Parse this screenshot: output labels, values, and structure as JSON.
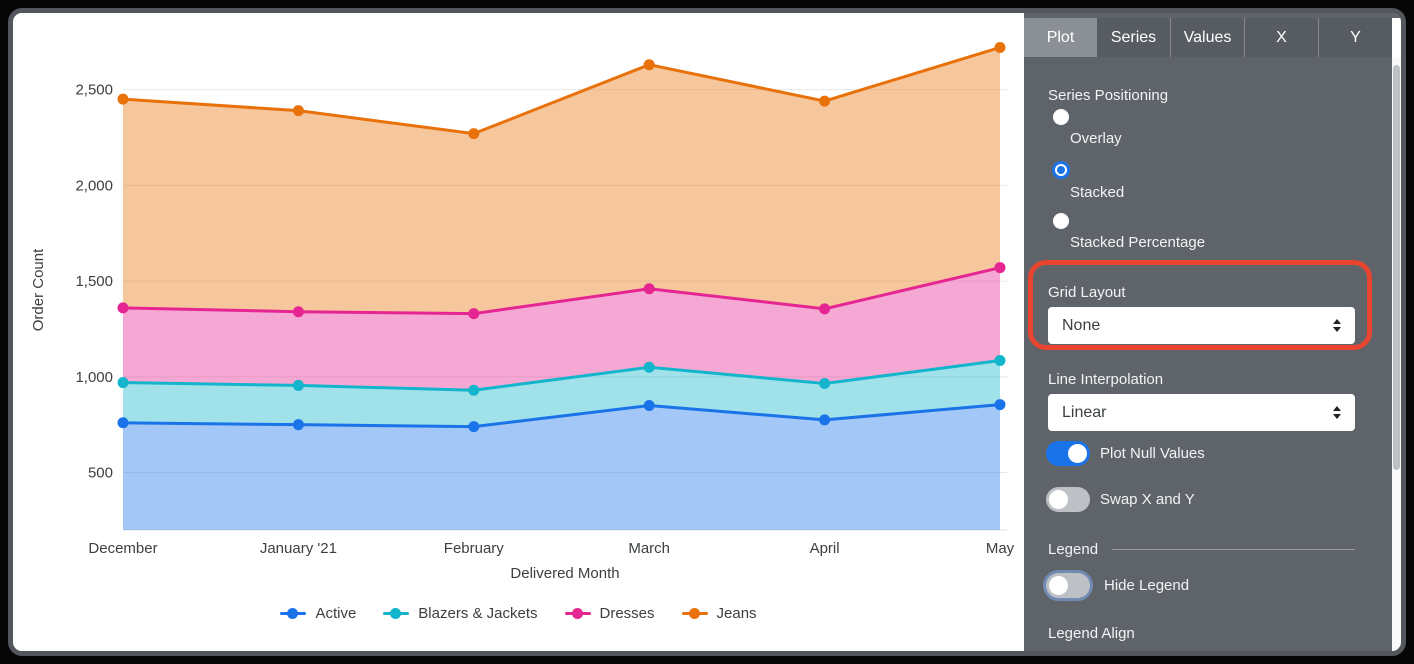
{
  "panel": {
    "tabs": [
      {
        "label": "Plot",
        "active": true
      },
      {
        "label": "Series",
        "active": false
      },
      {
        "label": "Values",
        "active": false
      },
      {
        "label": "X",
        "active": false
      },
      {
        "label": "Y",
        "active": false
      }
    ],
    "series_positioning": {
      "label": "Series Positioning",
      "options": [
        {
          "label": "Overlay",
          "selected": false
        },
        {
          "label": "Stacked",
          "selected": true
        },
        {
          "label": "Stacked Percentage",
          "selected": false
        }
      ]
    },
    "grid_layout": {
      "label": "Grid Layout",
      "value": "None"
    },
    "line_interpolation": {
      "label": "Line Interpolation",
      "value": "Linear"
    },
    "toggles": [
      {
        "label": "Plot Null Values",
        "on": true
      },
      {
        "label": "Swap X and Y",
        "on": false
      },
      {
        "label": "Hide Legend",
        "on": false,
        "focus_ring": true
      }
    ],
    "legend_section": {
      "header": "Legend",
      "legend_align_label": "Legend Align"
    },
    "colors": {
      "accent_blue": "#1a73e8",
      "panel_bg": "#5f646a",
      "active_tab": "#8a9096"
    }
  },
  "annotation": {
    "type": "highlight-box",
    "color": "#e8442f",
    "target": "Grid Layout"
  },
  "chart_data": {
    "type": "area",
    "stacked": true,
    "title": "",
    "xlabel": "Delivered Month",
    "ylabel": "Order Count",
    "categories": [
      "December",
      "January '21",
      "February",
      "March",
      "April",
      "May"
    ],
    "yticks": [
      500,
      1000,
      1500,
      2000,
      2500
    ],
    "ytick_labels": [
      "500",
      "1,000",
      "1,500",
      "2,000",
      "2,500"
    ],
    "ylim": [
      200,
      2900
    ],
    "grid": true,
    "legend_position": "bottom",
    "series": [
      {
        "name": "Active",
        "color": "#1a73e8",
        "values": [
          760,
          750,
          740,
          850,
          775,
          855
        ]
      },
      {
        "name": "Blazers & Jackets",
        "color": "#12b5cb",
        "values": [
          210,
          205,
          190,
          200,
          190,
          230
        ]
      },
      {
        "name": "Dresses",
        "color": "#e52592",
        "values": [
          390,
          385,
          400,
          410,
          390,
          485
        ]
      },
      {
        "name": "Jeans",
        "color": "#e8710a",
        "values": [
          1090,
          1050,
          940,
          1170,
          1085,
          1150
        ]
      }
    ],
    "stacked_totals": [
      2450,
      2390,
      2270,
      2630,
      2440,
      2720
    ]
  }
}
